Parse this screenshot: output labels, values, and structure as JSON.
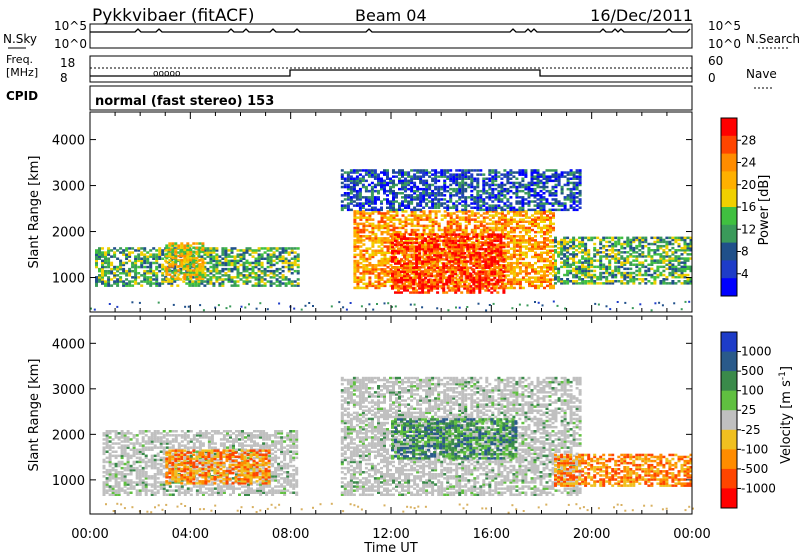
{
  "header": {
    "station": "Pykkvibaer (fitACF)",
    "beam": "Beam 04",
    "date": "16/Dec/2011"
  },
  "top_panels": {
    "nsky_label": "N.Sky",
    "nsearch_label": "N.Search",
    "nsky_ticks": [
      "10^5",
      "10^0"
    ],
    "nsearch_ticks": [
      "10^5",
      "10^0"
    ],
    "freq_label": "Freq.",
    "freq_unit": "[MHz]",
    "freq_ticks": [
      "18",
      "8"
    ],
    "nave_label": "Nave",
    "nave_ticks": [
      "60",
      "0"
    ],
    "cpid_label": "CPID",
    "cpid_text": "normal (fast stereo) 153"
  },
  "chart_data": [
    {
      "type": "heatmap",
      "name": "power",
      "ylabel": "Slant Range [km]",
      "xlabel": "Time UT",
      "ylim": [
        250,
        4600
      ],
      "xlim": [
        0,
        24
      ],
      "yticks": [
        1000,
        2000,
        3000,
        4000
      ],
      "xticks": [
        "00:00",
        "04:00",
        "08:00",
        "12:00",
        "16:00",
        "20:00",
        "00:00"
      ],
      "colorbar": {
        "label": "Power [dB]",
        "ticks": [
          "28",
          "24",
          "20",
          "16",
          "12",
          "8",
          "4"
        ],
        "colors": [
          "#ff0000",
          "#ff4500",
          "#ff8c00",
          "#ffb000",
          "#f0d000",
          "#40c040",
          "#3a9a5a",
          "#20508a",
          "#1e3cc8",
          "#0000ff"
        ]
      },
      "regions": [
        {
          "t0": 0.2,
          "t1": 8.3,
          "r0": 850,
          "r1": 1700,
          "level": "moderate"
        },
        {
          "t0": 3.0,
          "t1": 4.5,
          "r0": 1000,
          "r1": 1800,
          "level": "high"
        },
        {
          "t0": 10.5,
          "t1": 18.5,
          "r0": 800,
          "r1": 2500,
          "level": "very high"
        },
        {
          "t0": 12.0,
          "t1": 16.5,
          "r0": 700,
          "r1": 2000,
          "level": "strong"
        },
        {
          "t0": 18.5,
          "t1": 24.0,
          "r0": 900,
          "r1": 1900,
          "level": "moderate"
        },
        {
          "t0": 10.0,
          "t1": 19.5,
          "r0": 2500,
          "r1": 3400,
          "level": "low"
        }
      ]
    },
    {
      "type": "heatmap",
      "name": "velocity",
      "ylabel": "Slant Range [km]",
      "xlabel": "Time UT",
      "ylim": [
        250,
        4600
      ],
      "xlim": [
        0,
        24
      ],
      "yticks": [
        1000,
        2000,
        3000,
        4000
      ],
      "xticks": [
        "00:00",
        "04:00",
        "08:00",
        "12:00",
        "16:00",
        "20:00",
        "00:00"
      ],
      "colorbar": {
        "label": "Velocity [m s^-1]",
        "ticks": [
          "1000",
          "500",
          "100",
          "25",
          "-25",
          "-100",
          "-500",
          "-1000"
        ],
        "colors": [
          "#1e3cc8",
          "#2a5a8a",
          "#3a8a4a",
          "#60c040",
          "#c0c0c0",
          "#f0c020",
          "#ff8c00",
          "#ff4500",
          "#ff0000"
        ]
      },
      "regions": [
        {
          "t0": 0.5,
          "t1": 8.3,
          "r0": 700,
          "r1": 2100,
          "level": "near zero"
        },
        {
          "t0": 3.0,
          "t1": 7.2,
          "r0": 950,
          "r1": 1700,
          "level": "away -100 to -500"
        },
        {
          "t0": 10.0,
          "t1": 19.5,
          "r0": 700,
          "r1": 3300,
          "level": "near zero"
        },
        {
          "t0": 12.0,
          "t1": 17.0,
          "r0": 1500,
          "r1": 2400,
          "level": "toward 25-100"
        },
        {
          "t0": 18.5,
          "t1": 24.0,
          "r0": 900,
          "r1": 1600,
          "level": "away -100 to -500"
        }
      ]
    }
  ]
}
